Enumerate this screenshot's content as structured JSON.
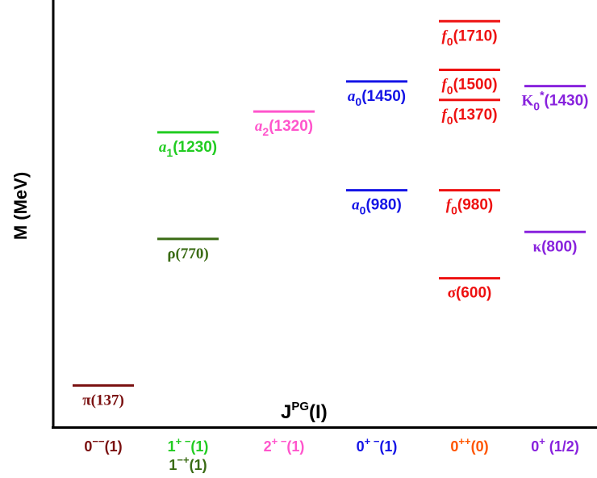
{
  "axis": {
    "y_label": "M (MeV)",
    "x_label": {
      "base": "J",
      "sup": "PG",
      "tail": "(I)"
    }
  },
  "categories": [
    {
      "id": "c1",
      "parts": [
        [
          "0",
          "n"
        ],
        [
          "−−",
          "sup"
        ],
        [
          "(1)",
          "n"
        ]
      ],
      "color": "#7a1010"
    },
    {
      "id": "c2",
      "parts": [
        [
          "1",
          "n"
        ],
        [
          "+ −",
          "sup"
        ],
        [
          "(1)",
          "n"
        ]
      ],
      "color": "#22cc22",
      "second": {
        "parts": [
          [
            "1",
            "n"
          ],
          [
            "−+",
            "sup"
          ],
          [
            "(1)",
            "n"
          ]
        ],
        "color": "#3a6b14"
      }
    },
    {
      "id": "c3",
      "parts": [
        [
          "2",
          "n"
        ],
        [
          "+ −",
          "sup"
        ],
        [
          "(1)",
          "n"
        ]
      ],
      "color": "#ff55cc"
    },
    {
      "id": "c4",
      "parts": [
        [
          "0",
          "n"
        ],
        [
          "+ −",
          "sup"
        ],
        [
          "(1)",
          "n"
        ]
      ],
      "color": "#1414e6"
    },
    {
      "id": "c5",
      "parts": [
        [
          "0",
          "n"
        ],
        [
          "++",
          "sup"
        ],
        [
          "(0)",
          "n"
        ]
      ],
      "color": "#ff5500"
    },
    {
      "id": "c6",
      "parts": [
        [
          "0",
          "n"
        ],
        [
          "+",
          "sup"
        ],
        [
          " (1/2)",
          "n"
        ]
      ],
      "color": "#8822dd"
    }
  ],
  "levels": [
    {
      "name": "pi",
      "col": 0,
      "mass": 137,
      "color": "#7a1010",
      "parts": [
        [
          "π",
          "serif"
        ],
        [
          "(137)",
          "serif"
        ]
      ]
    },
    {
      "name": "rho",
      "col": 1,
      "mass": 770,
      "color": "#3a6b14",
      "parts": [
        [
          "ρ",
          "serif"
        ],
        [
          "(770)",
          "serif"
        ]
      ]
    },
    {
      "name": "a1",
      "col": 1,
      "mass": 1230,
      "color": "#22cc22",
      "parts": [
        [
          "a",
          "it"
        ],
        [
          "1",
          "sub"
        ],
        [
          "(1230)",
          "n"
        ]
      ]
    },
    {
      "name": "a2",
      "col": 2,
      "mass": 1320,
      "color": "#ff55cc",
      "parts": [
        [
          "a",
          "it"
        ],
        [
          "2",
          "sub"
        ],
        [
          "(1320)",
          "n"
        ]
      ]
    },
    {
      "name": "a0-980",
      "col": 3,
      "mass": 980,
      "color": "#1414e6",
      "parts": [
        [
          "a",
          "it"
        ],
        [
          "0",
          "sub"
        ],
        [
          "(980)",
          "n"
        ]
      ]
    },
    {
      "name": "a0-1450",
      "col": 3,
      "mass": 1450,
      "color": "#1414e6",
      "parts": [
        [
          "a",
          "it"
        ],
        [
          "0",
          "sub"
        ],
        [
          "(1450)",
          "n"
        ]
      ]
    },
    {
      "name": "sigma",
      "col": 4,
      "mass": 600,
      "color": "#ee1111",
      "parts": [
        [
          "σ",
          "serif"
        ],
        [
          "(600)",
          "n"
        ]
      ]
    },
    {
      "name": "f0-980",
      "col": 4,
      "mass": 980,
      "color": "#ee1111",
      "parts": [
        [
          "f",
          "it"
        ],
        [
          "0",
          "sub"
        ],
        [
          "(980)",
          "n"
        ]
      ]
    },
    {
      "name": "f0-1370",
      "col": 4,
      "mass": 1370,
      "color": "#ee1111",
      "parts": [
        [
          "f",
          "it"
        ],
        [
          "0",
          "sub"
        ],
        [
          "(1370)",
          "n"
        ]
      ]
    },
    {
      "name": "f0-1500",
      "col": 4,
      "mass": 1500,
      "color": "#ee1111",
      "parts": [
        [
          "f",
          "it"
        ],
        [
          "0",
          "sub"
        ],
        [
          "(1500)",
          "n"
        ]
      ]
    },
    {
      "name": "f0-1710",
      "col": 4,
      "mass": 1710,
      "color": "#ee1111",
      "parts": [
        [
          "f",
          "it"
        ],
        [
          "0",
          "sub"
        ],
        [
          "(1710)",
          "n"
        ]
      ]
    },
    {
      "name": "kappa",
      "col": 5,
      "mass": 800,
      "color": "#8822dd",
      "parts": [
        [
          "κ",
          "serif"
        ],
        [
          "(800)",
          "n"
        ]
      ]
    },
    {
      "name": "K0star",
      "col": 5,
      "mass": 1430,
      "color": "#8822dd",
      "parts": [
        [
          "K",
          "serif"
        ],
        [
          "0",
          "sub"
        ],
        [
          "*",
          "sup"
        ],
        [
          "(1430)",
          "n"
        ]
      ]
    }
  ]
}
